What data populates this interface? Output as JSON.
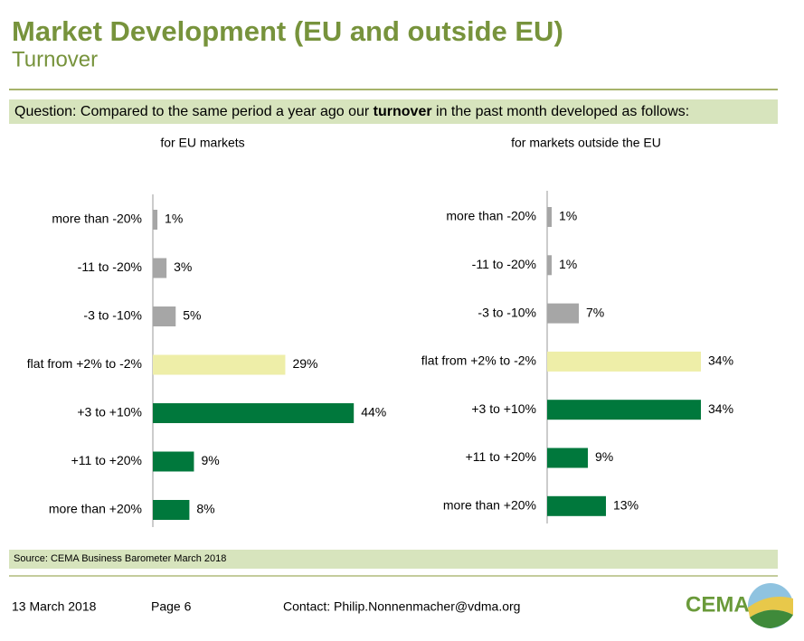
{
  "header": {
    "title": "Market Development (EU and outside EU)",
    "subtitle": "Turnover"
  },
  "question": {
    "parts": [
      "Question: Compared to the same period a year ago our ",
      "turnover",
      " in the past month developed as follows:"
    ]
  },
  "chart_data": [
    {
      "type": "bar",
      "orientation": "horizontal",
      "title": "for EU markets",
      "categories": [
        "more than -20%",
        "-11 to -20%",
        "-3 to -10%",
        "flat from +2% to -2%",
        "+3 to +10%",
        "+11 to +20%",
        "more than +20%"
      ],
      "values": [
        1,
        3,
        5,
        29,
        44,
        9,
        8
      ],
      "value_labels": [
        "1%",
        "3%",
        "5%",
        "29%",
        "44%",
        "9%",
        "8%"
      ],
      "colors": [
        "#a6a6a6",
        "#a6a6a6",
        "#a6a6a6",
        "#eeeea8",
        "#00783c",
        "#00783c",
        "#00783c"
      ]
    },
    {
      "type": "bar",
      "orientation": "horizontal",
      "title": "for markets outside the EU",
      "categories": [
        "more than -20%",
        "-11 to -20%",
        "-3 to -10%",
        "flat from +2% to -2%",
        "+3 to +10%",
        "+11 to +20%",
        "more than +20%"
      ],
      "values": [
        1,
        1,
        7,
        34,
        34,
        9,
        13
      ],
      "value_labels": [
        "1%",
        "1%",
        "7%",
        "34%",
        "34%",
        "9%",
        "13%"
      ],
      "colors": [
        "#a6a6a6",
        "#a6a6a6",
        "#a6a6a6",
        "#eeeea8",
        "#00783c",
        "#00783c",
        "#00783c"
      ]
    }
  ],
  "source": "Source: CEMA Business Barometer March 2018",
  "footer": {
    "date": "13 March 2018",
    "page": "Page 6",
    "contact": "Contact: Philip.Nonnenmacher@vdma.org",
    "logo": "CEMA"
  }
}
